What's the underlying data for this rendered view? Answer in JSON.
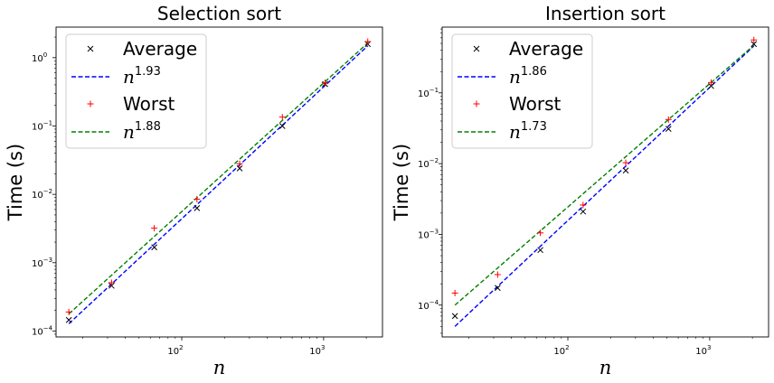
{
  "chart_data": [
    {
      "type": "scatter",
      "title": "Selection sort",
      "xlabel": "n",
      "ylabel": "Time (s)",
      "xscale": "log",
      "yscale": "log",
      "xlim": [
        13,
        2600
      ],
      "ylim": [
        8.2e-05,
        2.8
      ],
      "x_ticks": [
        {
          "value": 100,
          "mant": "10",
          "exp": "2"
        },
        {
          "value": 1000,
          "mant": "10",
          "exp": "3"
        }
      ],
      "y_ticks": [
        {
          "value": 0.0001,
          "mant": "10",
          "exp": "−4"
        },
        {
          "value": 0.001,
          "mant": "10",
          "exp": "−3"
        },
        {
          "value": 0.01,
          "mant": "10",
          "exp": "−2"
        },
        {
          "value": 0.1,
          "mant": "10",
          "exp": "−1"
        },
        {
          "value": 1,
          "mant": "10",
          "exp": "0"
        }
      ],
      "legend_position": "upper-left",
      "series": [
        {
          "name": "Average",
          "kind": "points",
          "marker": "x",
          "color": "#000000",
          "x": [
            16,
            32,
            64,
            128,
            256,
            512,
            1024,
            2048
          ],
          "y": [
            0.000145,
            0.00046,
            0.00168,
            0.0063,
            0.024,
            0.1,
            0.41,
            1.58
          ]
        },
        {
          "name": "n",
          "exponent": "1.93",
          "kind": "fit",
          "color": "#0000ff",
          "x": [
            16,
            2048
          ],
          "y": [
            0.000128,
            1.49
          ]
        },
        {
          "name": "Worst",
          "kind": "points",
          "marker": "+",
          "color": "#ff0000",
          "x": [
            16,
            32,
            64,
            128,
            256,
            512,
            1024,
            2048
          ],
          "y": [
            0.00019,
            0.00051,
            0.0032,
            0.0085,
            0.028,
            0.135,
            0.43,
            1.72
          ]
        },
        {
          "name": "n",
          "exponent": "1.88",
          "kind": "fit",
          "color": "#008000",
          "x": [
            16,
            2048
          ],
          "y": [
            0.000178,
            1.64
          ]
        }
      ]
    },
    {
      "type": "scatter",
      "title": "Insertion sort",
      "xlabel": "n",
      "ylabel": "Time (s)",
      "xscale": "log",
      "yscale": "log",
      "xlim": [
        13,
        2600
      ],
      "ylim": [
        3.55e-05,
        0.85
      ],
      "x_ticks": [
        {
          "value": 100,
          "mant": "10",
          "exp": "2"
        },
        {
          "value": 1000,
          "mant": "10",
          "exp": "3"
        }
      ],
      "y_ticks": [
        {
          "value": 0.0001,
          "mant": "10",
          "exp": "−4"
        },
        {
          "value": 0.001,
          "mant": "10",
          "exp": "−3"
        },
        {
          "value": 0.01,
          "mant": "10",
          "exp": "−2"
        },
        {
          "value": 0.1,
          "mant": "10",
          "exp": "−1"
        }
      ],
      "legend_position": "upper-left",
      "series": [
        {
          "name": "Average",
          "kind": "points",
          "marker": "x",
          "color": "#000000",
          "x": [
            16,
            32,
            64,
            128,
            256,
            512,
            1024,
            2048
          ],
          "y": [
            7e-05,
            0.000175,
            0.0006,
            0.0021,
            0.008,
            0.031,
            0.125,
            0.49
          ]
        },
        {
          "name": "n",
          "exponent": "1.86",
          "kind": "fit",
          "color": "#0000ff",
          "x": [
            16,
            2048
          ],
          "y": [
            5e-05,
            0.46
          ]
        },
        {
          "name": "Worst",
          "kind": "points",
          "marker": "+",
          "color": "#ff0000",
          "x": [
            16,
            32,
            64,
            128,
            256,
            512,
            1024,
            2048
          ],
          "y": [
            0.000148,
            0.00027,
            0.00105,
            0.0026,
            0.0103,
            0.042,
            0.14,
            0.56
          ]
        },
        {
          "name": "n",
          "exponent": "1.73",
          "kind": "fit",
          "color": "#008000",
          "x": [
            16,
            2048
          ],
          "y": [
            0.0001,
            0.47
          ]
        }
      ]
    }
  ]
}
